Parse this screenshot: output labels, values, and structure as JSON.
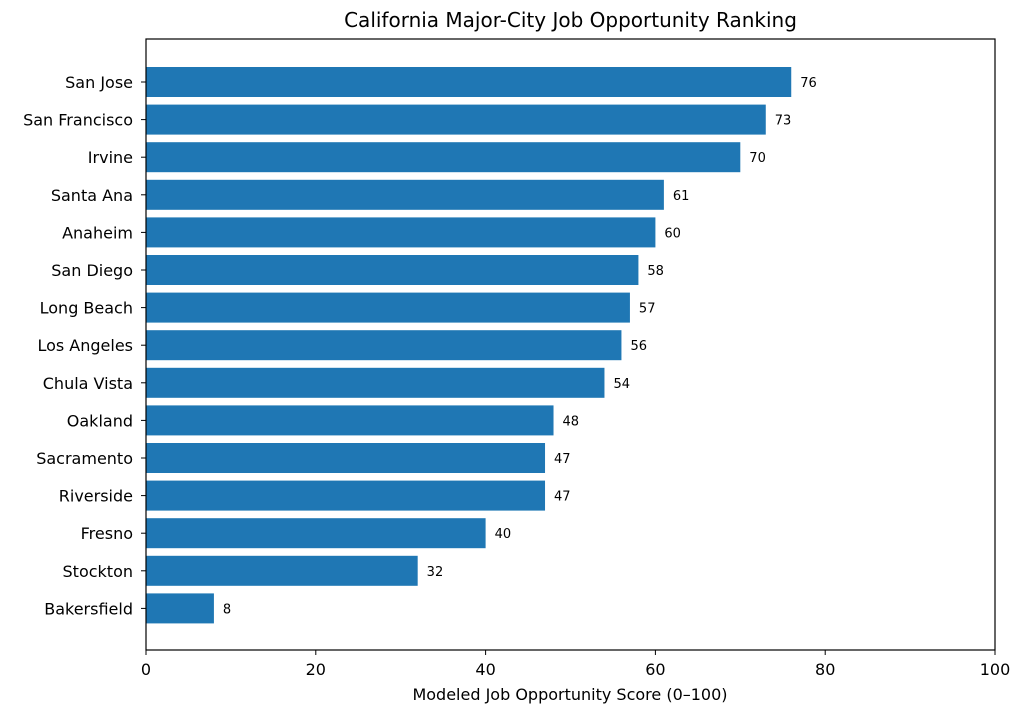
{
  "chart_data": {
    "type": "bar",
    "orientation": "horizontal",
    "title": "California Major-City Job Opportunity Ranking",
    "xlabel": "Modeled Job Opportunity Score (0–100)",
    "ylabel": "",
    "xlim": [
      0,
      100
    ],
    "xticks": [
      0,
      20,
      40,
      60,
      80,
      100
    ],
    "categories": [
      "San Jose",
      "San Francisco",
      "Irvine",
      "Santa Ana",
      "Anaheim",
      "San Diego",
      "Long Beach",
      "Los Angeles",
      "Chula Vista",
      "Oakland",
      "Sacramento",
      "Riverside",
      "Fresno",
      "Stockton",
      "Bakersfield"
    ],
    "values": [
      76,
      73,
      70,
      61,
      60,
      58,
      57,
      56,
      54,
      48,
      47,
      47,
      40,
      32,
      8
    ],
    "data_labels": [
      "76",
      "73",
      "70",
      "61",
      "60",
      "58",
      "57",
      "56",
      "54",
      "48",
      "47",
      "47",
      "40",
      "32",
      "8"
    ],
    "bar_color": "#1f77b4",
    "grid": false,
    "legend": "none"
  }
}
